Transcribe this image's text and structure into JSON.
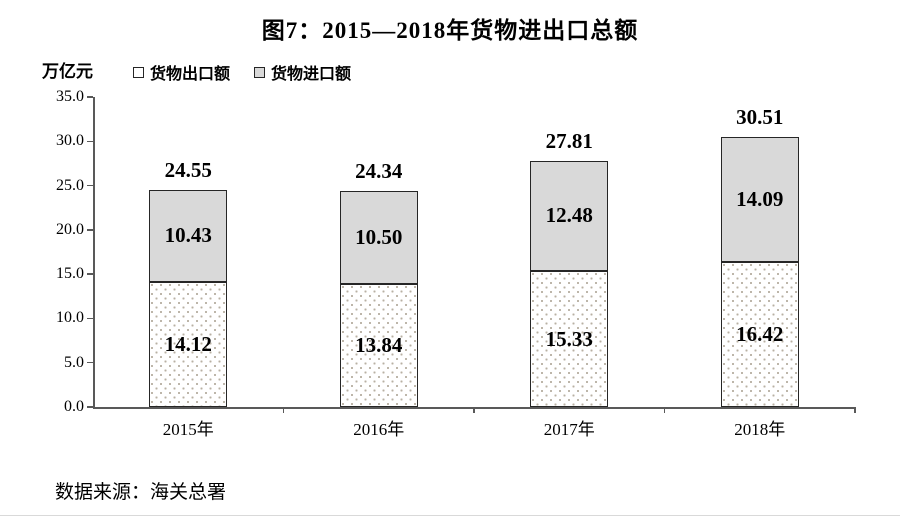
{
  "figure": {
    "title": "图7：2015—2018年货物进出口总额",
    "source": "数据来源：海关总署"
  },
  "chart_data": {
    "type": "bar",
    "stacked": true,
    "title": "图7：2015—2018年货物进出口总额",
    "unit_label": "万亿元",
    "categories": [
      "2015年",
      "2016年",
      "2017年",
      "2018年"
    ],
    "series": [
      {
        "name": "货物出口额",
        "values": [
          14.12,
          13.84,
          15.33,
          16.42
        ],
        "fill": "white-dotted"
      },
      {
        "name": "货物进口额",
        "values": [
          10.43,
          10.5,
          12.48,
          14.09
        ],
        "fill": "light-gray"
      }
    ],
    "totals": [
      24.55,
      24.34,
      27.81,
      30.51
    ],
    "ylim": [
      0,
      35
    ],
    "ytick_step": 5,
    "ytick_labels": [
      "0.0",
      "5.0",
      "10.0",
      "15.0",
      "20.0",
      "25.0",
      "30.0",
      "35.0"
    ],
    "legend_position": "top-left",
    "grid": false,
    "value_label_decimals": 2
  },
  "colors": {
    "import_fill": "#d9d9d9",
    "export_fill": "#ffffff",
    "export_dot": "#b8b0a3",
    "bar_border": "#262626",
    "axis": "#595959",
    "text": "#000000"
  }
}
